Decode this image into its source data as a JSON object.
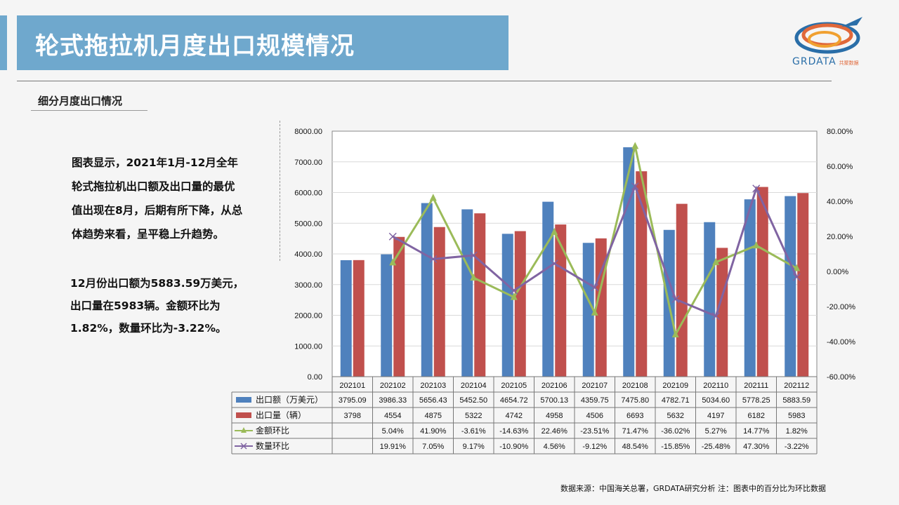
{
  "header": {
    "title": "轮式拖拉机月度出口规模情况"
  },
  "logo": {
    "text": "GRDATA",
    "small_text": "共聚数据"
  },
  "section": {
    "subtitle": "细分月度出口情况"
  },
  "description": {
    "para1_lines": [
      "图表显示，2021年1月-12月全年",
      "轮式拖拉机出口额及出口量的最优",
      "值出现在8月，后期有所下降，从总",
      "体趋势来看，呈平稳上升趋势。"
    ],
    "para2_lines": [
      "12月份出口额为5883.59万美元，",
      "出口量在5983辆。金额环比为",
      "1.82%，数量环比为-3.22%。"
    ]
  },
  "source_note": "数据来源：中国海关总署，GRDATA研究分析  注：图表中的百分比为环比数据",
  "chart_data": {
    "type": "bar",
    "categories": [
      "202101",
      "202102",
      "202103",
      "202104",
      "202105",
      "202106",
      "202107",
      "202108",
      "202109",
      "202110",
      "202111",
      "202112"
    ],
    "series": [
      {
        "name": "出口额（万美元）",
        "kind": "bar",
        "axis": "left",
        "color": "#4f81bd",
        "values": [
          3795.09,
          3986.33,
          5656.43,
          5452.5,
          4654.72,
          5700.13,
          4359.75,
          7475.8,
          4782.71,
          5034.6,
          5778.25,
          5883.59
        ],
        "labels": [
          "3795.09",
          "3986.33",
          "5656.43",
          "5452.50",
          "4654.72",
          "5700.13",
          "4359.75",
          "7475.80",
          "4782.71",
          "5034.60",
          "5778.25",
          "5883.59"
        ]
      },
      {
        "name": "出口量（辆）",
        "kind": "bar",
        "axis": "left",
        "color": "#c0504d",
        "values": [
          3798,
          4554,
          4875,
          5322,
          4742,
          4958,
          4506,
          6693,
          5632,
          4197,
          6182,
          5983
        ],
        "labels": [
          "3798",
          "4554",
          "4875",
          "5322",
          "4742",
          "4958",
          "4506",
          "6693",
          "5632",
          "4197",
          "6182",
          "5983"
        ]
      },
      {
        "name": "金额环比",
        "kind": "line",
        "axis": "right",
        "color": "#9bbb59",
        "marker": "triangle",
        "values": [
          null,
          5.04,
          41.9,
          -3.61,
          -14.63,
          22.46,
          -23.51,
          71.47,
          -36.02,
          5.27,
          14.77,
          1.82
        ],
        "labels": [
          "",
          "5.04%",
          "41.90%",
          "-3.61%",
          "-14.63%",
          "22.46%",
          "-23.51%",
          "71.47%",
          "-36.02%",
          "5.27%",
          "14.77%",
          "1.82%"
        ]
      },
      {
        "name": "数量环比",
        "kind": "line",
        "axis": "right",
        "color": "#8064a2",
        "marker": "x",
        "values": [
          null,
          19.91,
          7.05,
          9.17,
          -10.9,
          4.56,
          -9.12,
          48.54,
          -15.85,
          -25.48,
          47.3,
          -3.22
        ],
        "labels": [
          "",
          "19.91%",
          "7.05%",
          "9.17%",
          "-10.90%",
          "4.56%",
          "-9.12%",
          "48.54%",
          "-15.85%",
          "-25.48%",
          "47.30%",
          "-3.22%"
        ]
      }
    ],
    "y_left": {
      "min": 0,
      "max": 8000,
      "step": 1000,
      "ticks": [
        "8000.00",
        "7000.00",
        "6000.00",
        "5000.00",
        "4000.00",
        "3000.00",
        "2000.00",
        "1000.00",
        "0.00"
      ]
    },
    "y_right": {
      "min": -60,
      "max": 80,
      "step": 20,
      "ticks": [
        "80.00%",
        "60.00%",
        "40.00%",
        "20.00%",
        "0.00%",
        "-20.00%",
        "-40.00%",
        "-60.00%"
      ]
    },
    "grid": true,
    "legend": "data-table"
  }
}
